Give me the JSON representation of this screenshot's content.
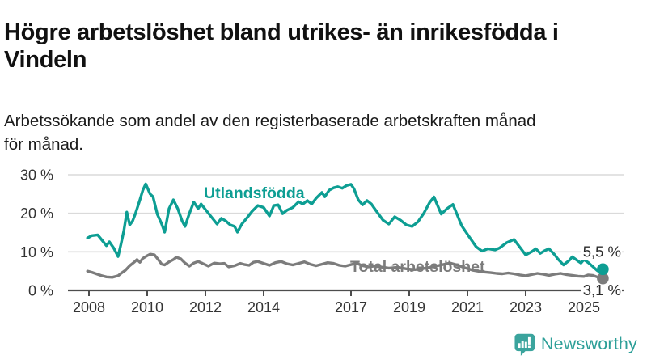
{
  "header": {
    "title": "Högre arbetslöshet bland utrikes- än inrikesfödda i\nVindeln",
    "subtitle": "Arbetssökande som andel av den registerbaserade arbetskraften månad\nför månad."
  },
  "branding": {
    "logo_text": "Newsworthy",
    "logo_color": "#2d9f98"
  },
  "colors": {
    "series_foreign": "#0d9e93",
    "series_total": "#7c7c7c",
    "grid": "#dadada",
    "axis": "#4d4d4d",
    "tick_text": "#333333",
    "end_label_text": "#2b2b2b"
  },
  "chart_data": {
    "type": "line",
    "title": "Högre arbetslöshet bland utrikes- än inrikesfödda i Vindeln",
    "subtitle": "Arbetssökande som andel av den registerbaserade arbetskraften månad för månad.",
    "xlabel": "",
    "ylabel": "",
    "grid": "horizontal",
    "xlim": [
      2007.8,
      2026.4
    ],
    "ylim": [
      0,
      30
    ],
    "x_ticks": [
      {
        "v": 2008,
        "label": "2008"
      },
      {
        "v": 2010,
        "label": "2010"
      },
      {
        "v": 2012,
        "label": "2012"
      },
      {
        "v": 2014,
        "label": "2014"
      },
      {
        "v": 2017,
        "label": "2017"
      },
      {
        "v": 2019,
        "label": "2019"
      },
      {
        "v": 2021,
        "label": "2021"
      },
      {
        "v": 2023,
        "label": "2023"
      },
      {
        "v": 2025,
        "label": "2025"
      }
    ],
    "y_ticks": [
      {
        "v": 0,
        "label": "0 %"
      },
      {
        "v": 10,
        "label": "10 %"
      },
      {
        "v": 20,
        "label": "20 %"
      },
      {
        "v": 30,
        "label": "30 %"
      }
    ],
    "series": [
      {
        "name": "Total arbetslöshet",
        "color": "#7c7c7c",
        "end_label": "3,1 %",
        "end_value": 3.1,
        "points": [
          [
            2007.95,
            5.0
          ],
          [
            2008.1,
            4.7
          ],
          [
            2008.25,
            4.3
          ],
          [
            2008.4,
            3.9
          ],
          [
            2008.6,
            3.5
          ],
          [
            2008.8,
            3.4
          ],
          [
            2009.0,
            3.8
          ],
          [
            2009.1,
            4.4
          ],
          [
            2009.25,
            5.2
          ],
          [
            2009.4,
            6.4
          ],
          [
            2009.55,
            7.3
          ],
          [
            2009.65,
            8.0
          ],
          [
            2009.75,
            7.3
          ],
          [
            2009.85,
            8.3
          ],
          [
            2010.0,
            9.0
          ],
          [
            2010.1,
            9.4
          ],
          [
            2010.25,
            9.2
          ],
          [
            2010.4,
            7.8
          ],
          [
            2010.5,
            6.8
          ],
          [
            2010.6,
            6.6
          ],
          [
            2010.75,
            7.4
          ],
          [
            2010.9,
            8.0
          ],
          [
            2011.0,
            8.6
          ],
          [
            2011.15,
            8.2
          ],
          [
            2011.3,
            7.1
          ],
          [
            2011.45,
            6.3
          ],
          [
            2011.6,
            7.1
          ],
          [
            2011.75,
            7.5
          ],
          [
            2011.9,
            7.0
          ],
          [
            2012.1,
            6.3
          ],
          [
            2012.3,
            7.1
          ],
          [
            2012.5,
            6.9
          ],
          [
            2012.65,
            7.0
          ],
          [
            2012.8,
            6.1
          ],
          [
            2013.0,
            6.4
          ],
          [
            2013.2,
            7.0
          ],
          [
            2013.35,
            6.7
          ],
          [
            2013.5,
            6.5
          ],
          [
            2013.65,
            7.3
          ],
          [
            2013.8,
            7.5
          ],
          [
            2014.0,
            7.0
          ],
          [
            2014.2,
            6.5
          ],
          [
            2014.4,
            7.2
          ],
          [
            2014.6,
            7.5
          ],
          [
            2014.8,
            6.9
          ],
          [
            2015.0,
            6.6
          ],
          [
            2015.2,
            7.0
          ],
          [
            2015.4,
            7.4
          ],
          [
            2015.6,
            6.8
          ],
          [
            2015.8,
            6.4
          ],
          [
            2016.0,
            6.8
          ],
          [
            2016.2,
            7.2
          ],
          [
            2016.4,
            7.0
          ],
          [
            2016.6,
            6.5
          ],
          [
            2016.8,
            6.3
          ],
          [
            2017.0,
            6.7
          ],
          [
            2017.2,
            7.0
          ],
          [
            2017.4,
            6.4
          ],
          [
            2017.6,
            6.1
          ],
          [
            2017.8,
            6.3
          ],
          [
            2018.0,
            6.1
          ],
          [
            2018.3,
            5.8
          ],
          [
            2018.6,
            6.0
          ],
          [
            2018.9,
            5.6
          ],
          [
            2019.2,
            5.4
          ],
          [
            2019.5,
            5.7
          ],
          [
            2019.8,
            6.1
          ],
          [
            2020.1,
            6.6
          ],
          [
            2020.4,
            7.1
          ],
          [
            2020.6,
            6.7
          ],
          [
            2020.9,
            5.9
          ],
          [
            2021.2,
            5.2
          ],
          [
            2021.5,
            4.8
          ],
          [
            2021.8,
            4.6
          ],
          [
            2022.0,
            4.4
          ],
          [
            2022.2,
            4.3
          ],
          [
            2022.4,
            4.5
          ],
          [
            2022.6,
            4.3
          ],
          [
            2022.8,
            4.0
          ],
          [
            2023.0,
            3.8
          ],
          [
            2023.2,
            4.1
          ],
          [
            2023.4,
            4.4
          ],
          [
            2023.6,
            4.2
          ],
          [
            2023.8,
            3.9
          ],
          [
            2024.0,
            4.2
          ],
          [
            2024.2,
            4.4
          ],
          [
            2024.4,
            4.1
          ],
          [
            2024.6,
            3.9
          ],
          [
            2024.8,
            3.7
          ],
          [
            2025.0,
            3.6
          ],
          [
            2025.15,
            4.0
          ],
          [
            2025.3,
            3.9
          ],
          [
            2025.45,
            3.5
          ],
          [
            2025.6,
            3.2
          ],
          [
            2025.65,
            3.1
          ]
        ]
      },
      {
        "name": "Utlandsfödda",
        "color": "#0d9e93",
        "end_label": "5,5 %",
        "end_value": 5.5,
        "points": [
          [
            2007.95,
            13.6
          ],
          [
            2008.1,
            14.2
          ],
          [
            2008.3,
            14.4
          ],
          [
            2008.45,
            13.0
          ],
          [
            2008.6,
            11.6
          ],
          [
            2008.7,
            12.6
          ],
          [
            2008.85,
            11.0
          ],
          [
            2009.0,
            8.8
          ],
          [
            2009.1,
            12.0
          ],
          [
            2009.2,
            15.5
          ],
          [
            2009.3,
            20.3
          ],
          [
            2009.4,
            17.0
          ],
          [
            2009.5,
            18.0
          ],
          [
            2009.6,
            20.0
          ],
          [
            2009.75,
            23.5
          ],
          [
            2009.85,
            26.0
          ],
          [
            2009.95,
            27.6
          ],
          [
            2010.1,
            25.0
          ],
          [
            2010.2,
            24.3
          ],
          [
            2010.35,
            19.7
          ],
          [
            2010.5,
            17.2
          ],
          [
            2010.6,
            15.1
          ],
          [
            2010.75,
            21.2
          ],
          [
            2010.9,
            23.5
          ],
          [
            2011.05,
            21.2
          ],
          [
            2011.2,
            18.0
          ],
          [
            2011.3,
            16.6
          ],
          [
            2011.45,
            20.0
          ],
          [
            2011.6,
            22.9
          ],
          [
            2011.75,
            21.2
          ],
          [
            2011.85,
            22.4
          ],
          [
            2012.0,
            21.0
          ],
          [
            2012.2,
            19.1
          ],
          [
            2012.4,
            17.2
          ],
          [
            2012.55,
            18.7
          ],
          [
            2012.7,
            18.0
          ],
          [
            2012.85,
            17.0
          ],
          [
            2013.0,
            16.6
          ],
          [
            2013.1,
            15.1
          ],
          [
            2013.25,
            17.2
          ],
          [
            2013.45,
            19.0
          ],
          [
            2013.6,
            20.5
          ],
          [
            2013.8,
            22.0
          ],
          [
            2014.0,
            21.5
          ],
          [
            2014.2,
            19.3
          ],
          [
            2014.35,
            22.0
          ],
          [
            2014.5,
            22.2
          ],
          [
            2014.65,
            19.9
          ],
          [
            2014.8,
            20.8
          ],
          [
            2015.0,
            21.5
          ],
          [
            2015.2,
            23.0
          ],
          [
            2015.35,
            22.4
          ],
          [
            2015.5,
            23.3
          ],
          [
            2015.65,
            22.4
          ],
          [
            2015.8,
            23.9
          ],
          [
            2016.0,
            25.4
          ],
          [
            2016.1,
            24.3
          ],
          [
            2016.25,
            26.0
          ],
          [
            2016.4,
            26.6
          ],
          [
            2016.55,
            26.9
          ],
          [
            2016.7,
            26.5
          ],
          [
            2016.85,
            27.2
          ],
          [
            2017.0,
            27.5
          ],
          [
            2017.1,
            26.4
          ],
          [
            2017.25,
            23.5
          ],
          [
            2017.4,
            22.2
          ],
          [
            2017.55,
            23.3
          ],
          [
            2017.7,
            22.4
          ],
          [
            2017.85,
            20.8
          ],
          [
            2018.1,
            18.2
          ],
          [
            2018.3,
            17.2
          ],
          [
            2018.5,
            19.1
          ],
          [
            2018.7,
            18.2
          ],
          [
            2018.9,
            17.0
          ],
          [
            2019.1,
            16.6
          ],
          [
            2019.3,
            17.8
          ],
          [
            2019.5,
            20.0
          ],
          [
            2019.7,
            22.8
          ],
          [
            2019.85,
            24.2
          ],
          [
            2020.1,
            19.8
          ],
          [
            2020.3,
            21.2
          ],
          [
            2020.5,
            22.3
          ],
          [
            2020.8,
            16.8
          ],
          [
            2021.05,
            14.0
          ],
          [
            2021.3,
            11.3
          ],
          [
            2021.5,
            10.2
          ],
          [
            2021.7,
            10.8
          ],
          [
            2021.95,
            10.5
          ],
          [
            2022.1,
            11.0
          ],
          [
            2022.35,
            12.4
          ],
          [
            2022.6,
            13.2
          ],
          [
            2022.8,
            11.2
          ],
          [
            2023.0,
            9.2
          ],
          [
            2023.2,
            10.0
          ],
          [
            2023.35,
            10.8
          ],
          [
            2023.5,
            9.6
          ],
          [
            2023.65,
            10.3
          ],
          [
            2023.8,
            10.8
          ],
          [
            2024.0,
            9.2
          ],
          [
            2024.1,
            8.2
          ],
          [
            2024.3,
            6.6
          ],
          [
            2024.5,
            7.8
          ],
          [
            2024.6,
            8.7
          ],
          [
            2024.8,
            7.6
          ],
          [
            2024.9,
            7.1
          ],
          [
            2025.0,
            8.0
          ],
          [
            2025.15,
            7.2
          ],
          [
            2025.3,
            6.2
          ],
          [
            2025.45,
            5.2
          ],
          [
            2025.55,
            4.7
          ],
          [
            2025.65,
            5.5
          ]
        ]
      }
    ]
  }
}
